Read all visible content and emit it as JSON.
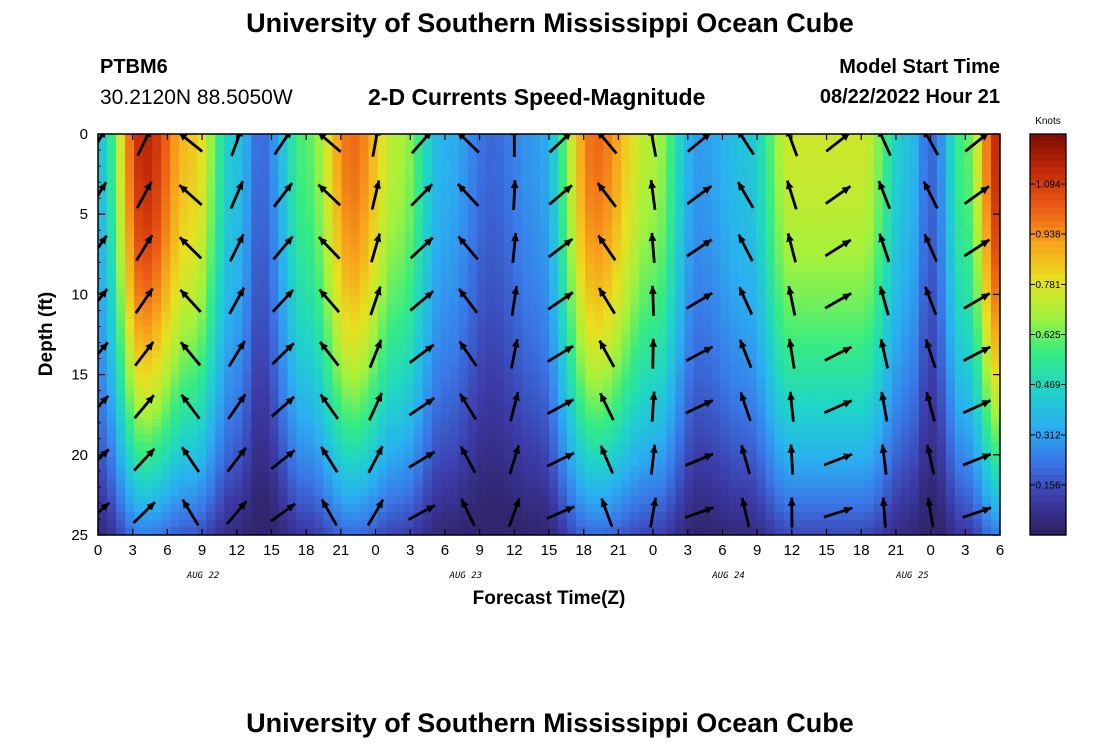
{
  "header": {
    "title": "University of Southern Mississippi Ocean Cube",
    "station": "PTBM6",
    "coordinates": "30.2120N  88.5050W",
    "subtitle": "2-D Currents Speed-Magnitude",
    "start_label": "Model Start Time",
    "start_value": "08/22/2022 Hour 21"
  },
  "footer": {
    "title": "University of Southern Mississippi Ocean Cube"
  },
  "colors": {
    "scale": [
      "#2d1e5a",
      "#3c3ba8",
      "#3a78e8",
      "#2ab0f0",
      "#1fd4c8",
      "#36ec82",
      "#a4f23c",
      "#e8e020",
      "#f8a41c",
      "#ec5a14",
      "#c22a08",
      "#7a0d04"
    ],
    "arrow": "#000000",
    "axis": "#000000"
  },
  "chart_data": {
    "type": "heatmap",
    "title": "2-D Currents Speed-Magnitude",
    "xlabel": "Forecast Time(Z)",
    "ylabel": "Depth (ft)",
    "x_range": [
      0,
      78
    ],
    "y_range": [
      0,
      25
    ],
    "x_tick_labels": [
      "0",
      "3",
      "6",
      "9",
      "12",
      "15",
      "18",
      "21",
      "0",
      "3",
      "6",
      "9",
      "12",
      "15",
      "18",
      "21",
      "0",
      "3",
      "6",
      "9",
      "12",
      "15",
      "18",
      "21",
      "0",
      "3",
      "6"
    ],
    "y_ticks": [
      0,
      5,
      10,
      15,
      20,
      25
    ],
    "date_labels": [
      {
        "text": "AUG 22",
        "hour": 12
      },
      {
        "text": "AUG 23",
        "hour": 42
      },
      {
        "text": "AUG 24",
        "hour": 72
      },
      {
        "text": "AUG 25",
        "hour": 93
      }
    ],
    "colorbar": {
      "units": "Knots",
      "min": 0.0,
      "max": 1.25,
      "ticks": [
        1.094,
        0.938,
        0.781,
        0.625,
        0.469,
        0.312,
        0.156
      ]
    },
    "surface_speed_by_hour": [
      {
        "hour": 0,
        "speed": 0.4
      },
      {
        "hour": 4,
        "speed": 1.15
      },
      {
        "hour": 8,
        "speed": 0.85
      },
      {
        "hour": 12,
        "speed": 0.4
      },
      {
        "hour": 14,
        "speed": 0.2
      },
      {
        "hour": 18,
        "speed": 0.6
      },
      {
        "hour": 22,
        "speed": 1.0
      },
      {
        "hour": 26,
        "speed": 0.7
      },
      {
        "hour": 30,
        "speed": 0.35
      },
      {
        "hour": 34,
        "speed": 0.2
      },
      {
        "hour": 38,
        "speed": 0.3
      },
      {
        "hour": 43,
        "speed": 1.0
      },
      {
        "hour": 48,
        "speed": 0.7
      },
      {
        "hour": 52,
        "speed": 0.3
      },
      {
        "hour": 56,
        "speed": 0.4
      },
      {
        "hour": 60,
        "speed": 0.75
      },
      {
        "hour": 66,
        "speed": 0.75
      },
      {
        "hour": 70,
        "speed": 0.4
      },
      {
        "hour": 72,
        "speed": 0.2
      },
      {
        "hour": 75,
        "speed": 0.6
      },
      {
        "hour": 78,
        "speed": 1.15
      }
    ]
  }
}
